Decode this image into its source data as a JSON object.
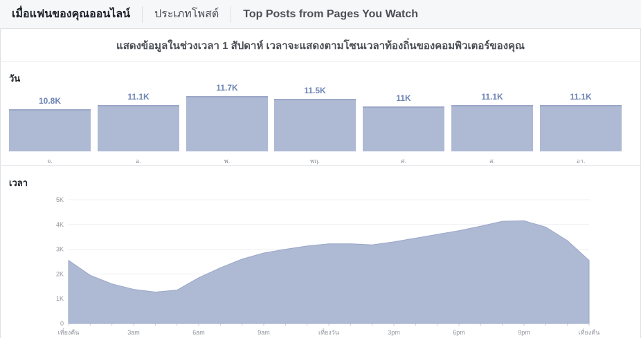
{
  "tabs": [
    {
      "label": "เมื่อแฟนของคุณออนไลน์",
      "active": true
    },
    {
      "label": "ประเภทโพสต์",
      "active": false
    },
    {
      "label": "Top Posts from Pages You Watch",
      "active": false
    }
  ],
  "notice": "แสดงข้อมูลในช่วงเวลา 1 สัปดาห์ เวลาจะแสดงตามโซนเวลาท้องถิ่นของคอมพิวเตอร์ของคุณ",
  "days_section": {
    "label": "วัน",
    "bars": [
      {
        "day": "จ.",
        "value_label": "10.8K",
        "value": 10800
      },
      {
        "day": "อ.",
        "value_label": "11.1K",
        "value": 11100
      },
      {
        "day": "พ.",
        "value_label": "11.7K",
        "value": 11700
      },
      {
        "day": "พฤ.",
        "value_label": "11.5K",
        "value": 11500
      },
      {
        "day": "ศ.",
        "value_label": "11K",
        "value": 11000
      },
      {
        "day": "ส.",
        "value_label": "11.1K",
        "value": 11100
      },
      {
        "day": "อา.",
        "value_label": "11.1K",
        "value": 11100
      }
    ]
  },
  "time_section": {
    "label": "เวลา"
  },
  "chart_data": [
    {
      "type": "bar",
      "categories": [
        "จ.",
        "อ.",
        "พ.",
        "พฤ.",
        "ศ.",
        "ส.",
        "อา."
      ],
      "values": [
        10800,
        11100,
        11700,
        11500,
        11000,
        11100,
        11100
      ],
      "data_labels": [
        "10.8K",
        "11.1K",
        "11.7K",
        "11.5K",
        "11K",
        "11.1K",
        "11.1K"
      ]
    },
    {
      "type": "area",
      "x": [
        0,
        1,
        2,
        3,
        4,
        5,
        6,
        7,
        8,
        9,
        10,
        11,
        12,
        13,
        14,
        15,
        16,
        17,
        18,
        19,
        20,
        21,
        22,
        23,
        24
      ],
      "values": [
        2550,
        1950,
        1600,
        1380,
        1270,
        1350,
        1850,
        2250,
        2600,
        2850,
        3000,
        3130,
        3220,
        3220,
        3180,
        3300,
        3450,
        3600,
        3750,
        3930,
        4130,
        4150,
        3900,
        3350,
        2550
      ],
      "ylim": [
        0,
        5000
      ],
      "yticks": [
        "0",
        "1K",
        "2K",
        "3K",
        "4K",
        "5K"
      ],
      "xticks": [
        "เที่ยงคืน",
        "3am",
        "6am",
        "9am",
        "เที่ยงวัน",
        "3pm",
        "6pm",
        "9pm",
        "เที่ยงคืน"
      ],
      "grid": true,
      "color": "#aeb9d4"
    }
  ]
}
